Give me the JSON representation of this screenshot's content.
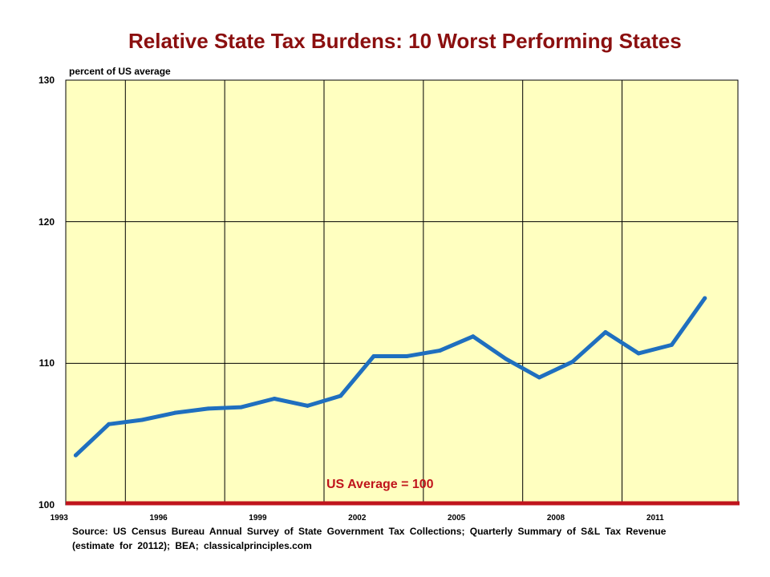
{
  "chart_data": {
    "type": "line",
    "title": "Relative State Tax Burdens: 10 Worst Performing States",
    "ylabel": "percent  of US average",
    "xlabel": "",
    "ylim": [
      100,
      130
    ],
    "yticks": [
      "100",
      "110",
      "120",
      "130"
    ],
    "x_tick_labels": [
      "1993",
      "1996",
      "1999",
      "2002",
      "2005",
      "2008",
      "2011"
    ],
    "grid": true,
    "background_color": "#ffffc0",
    "line_color": "#1f6fbf",
    "reference_line": {
      "value": 100,
      "label": "US Average = 100",
      "color": "#c0141c"
    },
    "series": [
      {
        "x": [
          1993,
          1994,
          1995,
          1996,
          1997,
          1998,
          1999,
          2000,
          2001,
          2002,
          2003,
          2004,
          2005,
          2006,
          2007,
          2008,
          2009,
          2010,
          2011,
          2012
        ],
        "values": [
          103.5,
          105.7,
          106.0,
          106.5,
          106.8,
          106.9,
          107.5,
          107.0,
          107.7,
          110.5,
          110.5,
          110.9,
          111.9,
          110.3,
          109.0,
          110.1,
          112.2,
          110.7,
          111.3,
          114.6
        ]
      }
    ]
  },
  "source_note": "Source:  US Census Bureau  Annual  Survey  of  State Government  Tax Collections;  Quarterly  Summary  of S&L  Tax Revenue  (estimate  for  20112);  BEA;  classicalprinciples.com"
}
